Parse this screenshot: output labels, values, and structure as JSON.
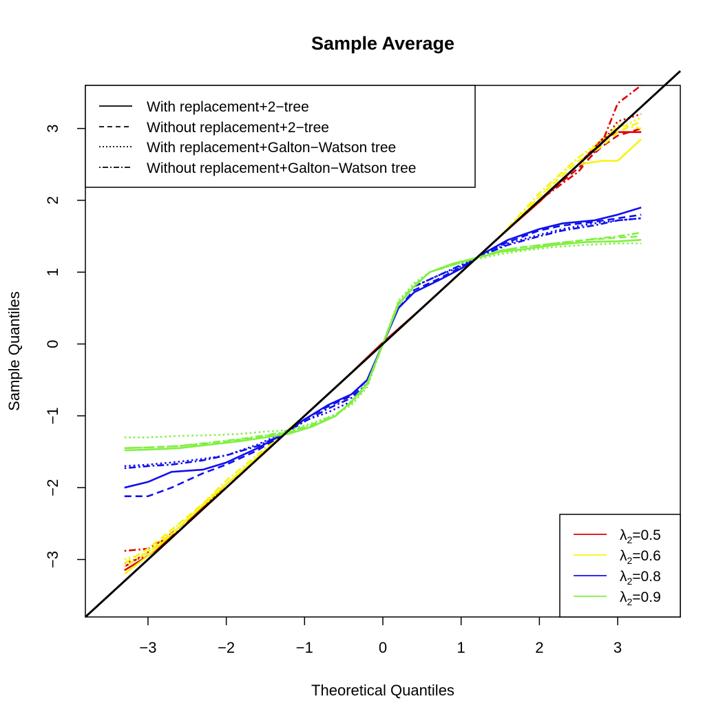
{
  "chart_data": {
    "type": "line",
    "title": "Sample Average",
    "xlabel": "Theoretical Quantiles",
    "ylabel": "Sample Quantiles",
    "xlim": [
      -3.8,
      3.8
    ],
    "ylim": [
      -3.8,
      3.6
    ],
    "xticks": [
      -3,
      -2,
      -1,
      0,
      1,
      2,
      3
    ],
    "yticks": [
      -3,
      -2,
      -1,
      0,
      1,
      2,
      3
    ],
    "xtick_labels": [
      "−3",
      "−2",
      "−1",
      "0",
      "1",
      "2",
      "3"
    ],
    "ytick_labels": [
      "−3",
      "−2",
      "−1",
      "0",
      "1",
      "2",
      "3"
    ],
    "reference_line": {
      "name": "y = x",
      "color": "#000000",
      "x": [
        -3.8,
        3.8
      ],
      "y": [
        -3.8,
        3.8
      ]
    },
    "linetype_legend": {
      "position": "top-left",
      "entries": [
        {
          "label": "With replacement+2−tree",
          "dash": "solid"
        },
        {
          "label": "Without replacement+2−tree",
          "dash": "dashed"
        },
        {
          "label": "With replacement+Galton−Watson tree",
          "dash": "dotted"
        },
        {
          "label": "Without replacement+Galton−Watson tree",
          "dash": "dotdash"
        }
      ]
    },
    "color_legend": {
      "position": "bottom-right",
      "entries": [
        {
          "symbol": "λ",
          "subscript": "2",
          "value": "=0.5",
          "color": "#dd0000"
        },
        {
          "symbol": "λ",
          "subscript": "2",
          "value": "=0.6",
          "color": "#f5f50a"
        },
        {
          "symbol": "λ",
          "subscript": "2",
          "value": "=0.8",
          "color": "#1010ee"
        },
        {
          "symbol": "λ",
          "subscript": "2",
          "value": "=0.9",
          "color": "#80f040"
        }
      ]
    },
    "series": [
      {
        "name": "λ2=0.5, With replacement+2-tree",
        "lambda": "0.5",
        "method": "With replacement+2-tree",
        "color": "#dd0000",
        "dash": "solid",
        "x": [
          -3.3,
          -3.0,
          -2.6,
          -2.0,
          -1.5,
          -1.0,
          -0.5,
          0.0,
          0.5,
          1.0,
          1.5,
          2.0,
          2.5,
          2.8,
          3.0,
          3.3
        ],
        "y": [
          -3.15,
          -2.95,
          -2.6,
          -1.95,
          -1.5,
          -1.0,
          -0.5,
          0.02,
          0.5,
          1.0,
          1.5,
          1.98,
          2.5,
          2.85,
          2.95,
          2.95
        ]
      },
      {
        "name": "λ2=0.5, Without replacement+2-tree",
        "lambda": "0.5",
        "method": "Without replacement+2-tree",
        "color": "#dd0000",
        "dash": "dashed",
        "x": [
          -3.3,
          -3.0,
          -2.6,
          -2.0,
          -1.5,
          -1.0,
          -0.5,
          0.0,
          0.5,
          1.0,
          1.5,
          2.0,
          2.5,
          2.8,
          3.0,
          3.3
        ],
        "y": [
          -3.1,
          -2.9,
          -2.55,
          -2.0,
          -1.5,
          -1.0,
          -0.5,
          0.0,
          0.5,
          1.0,
          1.5,
          2.0,
          2.45,
          2.75,
          2.9,
          3.0
        ]
      },
      {
        "name": "λ2=0.5, With replacement+Galton-Watson tree",
        "lambda": "0.5",
        "method": "With replacement+Galton-Watson tree",
        "color": "#dd0000",
        "dash": "dotted",
        "x": [
          -3.3,
          -3.0,
          -2.6,
          -2.0,
          -1.5,
          -1.0,
          -0.5,
          0.0,
          0.5,
          1.0,
          1.5,
          2.0,
          2.5,
          2.8,
          3.0,
          3.3
        ],
        "y": [
          -3.05,
          -2.95,
          -2.6,
          -2.0,
          -1.5,
          -1.0,
          -0.5,
          0.0,
          0.5,
          1.0,
          1.5,
          2.0,
          2.5,
          2.8,
          3.1,
          3.2
        ]
      },
      {
        "name": "λ2=0.5, Without replacement+Galton-Watson tree",
        "lambda": "0.5",
        "method": "Without replacement+Galton-Watson tree",
        "color": "#dd0000",
        "dash": "dotdash",
        "x": [
          -3.3,
          -3.0,
          -2.6,
          -2.0,
          -1.5,
          -1.0,
          -0.5,
          0.0,
          0.5,
          1.0,
          1.5,
          2.0,
          2.5,
          2.8,
          3.0,
          3.3
        ],
        "y": [
          -2.88,
          -2.85,
          -2.6,
          -2.0,
          -1.5,
          -1.0,
          -0.5,
          0.0,
          0.5,
          1.0,
          1.5,
          2.0,
          2.4,
          2.8,
          3.35,
          3.6
        ]
      },
      {
        "name": "λ2=0.6, With replacement+2-tree",
        "lambda": "0.6",
        "method": "With replacement+2-tree",
        "color": "#f5f50a",
        "dash": "solid",
        "x": [
          -3.3,
          -3.0,
          -2.6,
          -2.0,
          -1.5,
          -1.0,
          -0.5,
          0.0,
          0.5,
          1.0,
          1.5,
          2.0,
          2.5,
          2.8,
          3.0,
          3.3
        ],
        "y": [
          -3.2,
          -2.95,
          -2.55,
          -1.95,
          -1.48,
          -1.0,
          -0.5,
          0.0,
          0.5,
          1.0,
          1.5,
          2.0,
          2.5,
          2.55,
          2.55,
          2.85
        ]
      },
      {
        "name": "λ2=0.6, Without replacement+2-tree",
        "lambda": "0.6",
        "method": "Without replacement+2-tree",
        "color": "#f5f50a",
        "dash": "dashed",
        "x": [
          -3.3,
          -3.0,
          -2.6,
          -2.0,
          -1.5,
          -1.0,
          -0.5,
          0.0,
          0.5,
          1.0,
          1.5,
          2.0,
          2.5,
          2.8,
          3.0,
          3.3
        ],
        "y": [
          -3.05,
          -2.85,
          -2.5,
          -1.95,
          -1.5,
          -1.0,
          -0.5,
          0.0,
          0.5,
          1.0,
          1.5,
          2.05,
          2.55,
          2.75,
          2.95,
          3.1
        ]
      },
      {
        "name": "λ2=0.6, With replacement+Galton-Watson tree",
        "lambda": "0.6",
        "method": "With replacement+Galton-Watson tree",
        "color": "#f5f50a",
        "dash": "dotted",
        "x": [
          -3.3,
          -3.0,
          -2.6,
          -2.0,
          -1.5,
          -1.0,
          -0.5,
          0.0,
          0.5,
          1.0,
          1.5,
          2.0,
          2.5,
          2.8,
          3.0,
          3.3
        ],
        "y": [
          -3.0,
          -2.9,
          -2.5,
          -2.0,
          -1.5,
          -1.0,
          -0.5,
          0.0,
          0.5,
          1.0,
          1.5,
          2.05,
          2.6,
          2.85,
          3.0,
          3.15
        ]
      },
      {
        "name": "λ2=0.6, Without replacement+Galton-Watson tree",
        "lambda": "0.6",
        "method": "Without replacement+Galton-Watson tree",
        "color": "#f5f50a",
        "dash": "dotdash",
        "x": [
          -3.3,
          -3.0,
          -2.6,
          -2.0,
          -1.5,
          -1.0,
          -0.5,
          0.0,
          0.5,
          1.0,
          1.5,
          2.0,
          2.5,
          2.8,
          3.0,
          3.3
        ],
        "y": [
          -3.1,
          -2.9,
          -2.55,
          -1.9,
          -1.45,
          -1.0,
          -0.5,
          0.0,
          0.5,
          1.0,
          1.5,
          2.1,
          2.6,
          2.8,
          3.05,
          3.0
        ]
      },
      {
        "name": "λ2=0.8, With replacement+2-tree",
        "lambda": "0.8",
        "method": "With replacement+2-tree",
        "color": "#1010ee",
        "dash": "solid",
        "x": [
          -3.3,
          -3.0,
          -2.7,
          -2.3,
          -2.0,
          -1.6,
          -1.3,
          -1.0,
          -0.7,
          -0.4,
          -0.2,
          0.0,
          0.2,
          0.4,
          0.7,
          1.0,
          1.3,
          1.6,
          2.0,
          2.3,
          2.7,
          3.0,
          3.3
        ],
        "y": [
          -2.0,
          -1.92,
          -1.78,
          -1.75,
          -1.65,
          -1.45,
          -1.27,
          -1.05,
          -0.85,
          -0.7,
          -0.5,
          0.0,
          0.5,
          0.72,
          0.88,
          1.05,
          1.27,
          1.45,
          1.6,
          1.68,
          1.72,
          1.8,
          1.9
        ]
      },
      {
        "name": "λ2=0.8, Without replacement+2-tree",
        "lambda": "0.8",
        "method": "Without replacement+2-tree",
        "color": "#1010ee",
        "dash": "dashed",
        "x": [
          -3.3,
          -3.0,
          -2.7,
          -2.3,
          -2.0,
          -1.6,
          -1.3,
          -1.0,
          -0.7,
          -0.4,
          -0.2,
          0.0,
          0.2,
          0.4,
          0.7,
          1.0,
          1.3,
          1.6,
          2.0,
          2.3,
          2.7,
          3.0,
          3.3
        ],
        "y": [
          -2.12,
          -2.12,
          -2.0,
          -1.8,
          -1.68,
          -1.48,
          -1.28,
          -1.05,
          -0.87,
          -0.72,
          -0.5,
          0.0,
          0.5,
          0.75,
          0.9,
          1.07,
          1.27,
          1.42,
          1.58,
          1.65,
          1.7,
          1.75,
          1.8
        ]
      },
      {
        "name": "λ2=0.8, With replacement+Galton-Watson tree",
        "lambda": "0.8",
        "method": "With replacement+Galton-Watson tree",
        "color": "#1010ee",
        "dash": "dotted",
        "x": [
          -3.3,
          -3.0,
          -2.7,
          -2.3,
          -2.0,
          -1.6,
          -1.3,
          -1.0,
          -0.7,
          -0.4,
          -0.2,
          0.0,
          0.2,
          0.4,
          0.7,
          1.0,
          1.3,
          1.6,
          2.0,
          2.3,
          2.7,
          3.0,
          3.3
        ],
        "y": [
          -1.7,
          -1.68,
          -1.65,
          -1.6,
          -1.55,
          -1.4,
          -1.25,
          -1.07,
          -0.95,
          -0.8,
          -0.55,
          0.0,
          0.55,
          0.8,
          0.95,
          1.08,
          1.25,
          1.4,
          1.52,
          1.6,
          1.68,
          1.72,
          1.75
        ]
      },
      {
        "name": "λ2=0.8, Without replacement+Galton-Watson tree",
        "lambda": "0.8",
        "method": "Without replacement+Galton-Watson tree",
        "color": "#1010ee",
        "dash": "dotdash",
        "x": [
          -3.3,
          -3.0,
          -2.7,
          -2.3,
          -2.0,
          -1.6,
          -1.3,
          -1.0,
          -0.7,
          -0.4,
          -0.2,
          0.0,
          0.2,
          0.4,
          0.7,
          1.0,
          1.3,
          1.6,
          2.0,
          2.3,
          2.7,
          3.0,
          3.3
        ],
        "y": [
          -1.73,
          -1.7,
          -1.68,
          -1.62,
          -1.55,
          -1.42,
          -1.27,
          -1.08,
          -0.9,
          -0.75,
          -0.55,
          0.0,
          0.55,
          0.8,
          0.95,
          1.1,
          1.25,
          1.38,
          1.5,
          1.58,
          1.65,
          1.72,
          1.75
        ]
      },
      {
        "name": "λ2=0.9, With replacement+2-tree",
        "lambda": "0.9",
        "method": "With replacement+2-tree",
        "color": "#80f040",
        "dash": "solid",
        "x": [
          -3.3,
          -3.0,
          -2.6,
          -2.2,
          -1.8,
          -1.5,
          -1.2,
          -0.9,
          -0.6,
          -0.4,
          -0.2,
          0.0,
          0.2,
          0.4,
          0.6,
          0.9,
          1.2,
          1.5,
          1.8,
          2.2,
          2.6,
          3.0,
          3.3
        ],
        "y": [
          -1.48,
          -1.47,
          -1.45,
          -1.4,
          -1.35,
          -1.3,
          -1.25,
          -1.15,
          -1.0,
          -0.8,
          -0.55,
          0.0,
          0.55,
          0.8,
          1.0,
          1.12,
          1.2,
          1.28,
          1.32,
          1.38,
          1.42,
          1.43,
          1.45
        ]
      },
      {
        "name": "λ2=0.9, Without replacement+2-tree",
        "lambda": "0.9",
        "method": "Without replacement+2-tree",
        "color": "#80f040",
        "dash": "dashed",
        "x": [
          -3.3,
          -3.0,
          -2.6,
          -2.2,
          -1.8,
          -1.5,
          -1.2,
          -0.9,
          -0.6,
          -0.4,
          -0.2,
          0.0,
          0.2,
          0.4,
          0.6,
          0.9,
          1.2,
          1.5,
          1.8,
          2.2,
          2.6,
          3.0,
          3.3
        ],
        "y": [
          -1.45,
          -1.44,
          -1.42,
          -1.38,
          -1.33,
          -1.28,
          -1.23,
          -1.13,
          -1.0,
          -0.8,
          -0.55,
          0.0,
          0.55,
          0.8,
          1.0,
          1.12,
          1.2,
          1.3,
          1.35,
          1.4,
          1.45,
          1.48,
          1.5
        ]
      },
      {
        "name": "λ2=0.9, With replacement+Galton-Watson tree",
        "lambda": "0.9",
        "method": "With replacement+Galton-Watson tree",
        "color": "#80f040",
        "dash": "dotted",
        "x": [
          -3.3,
          -3.0,
          -2.6,
          -2.2,
          -1.8,
          -1.5,
          -1.2,
          -0.9,
          -0.6,
          -0.4,
          -0.2,
          0.0,
          0.2,
          0.4,
          0.6,
          0.9,
          1.2,
          1.5,
          1.8,
          2.2,
          2.6,
          3.0,
          3.3
        ],
        "y": [
          -1.3,
          -1.3,
          -1.28,
          -1.27,
          -1.25,
          -1.22,
          -1.2,
          -1.1,
          -0.98,
          -0.85,
          -0.6,
          0.0,
          0.6,
          0.85,
          1.0,
          1.1,
          1.18,
          1.25,
          1.3,
          1.35,
          1.38,
          1.4,
          1.4
        ]
      },
      {
        "name": "λ2=0.9, Without replacement+Galton-Watson tree",
        "lambda": "0.9",
        "method": "Without replacement+Galton-Watson tree",
        "color": "#80f040",
        "dash": "dotdash",
        "x": [
          -3.3,
          -3.0,
          -2.6,
          -2.2,
          -1.8,
          -1.5,
          -1.2,
          -0.9,
          -0.6,
          -0.4,
          -0.2,
          0.0,
          0.2,
          0.4,
          0.6,
          0.9,
          1.2,
          1.5,
          1.8,
          2.2,
          2.6,
          3.0,
          3.3
        ],
        "y": [
          -1.45,
          -1.44,
          -1.42,
          -1.37,
          -1.32,
          -1.27,
          -1.22,
          -1.12,
          -0.98,
          -0.82,
          -0.58,
          0.0,
          0.58,
          0.82,
          1.0,
          1.1,
          1.2,
          1.3,
          1.35,
          1.4,
          1.45,
          1.5,
          1.55
        ]
      }
    ]
  }
}
